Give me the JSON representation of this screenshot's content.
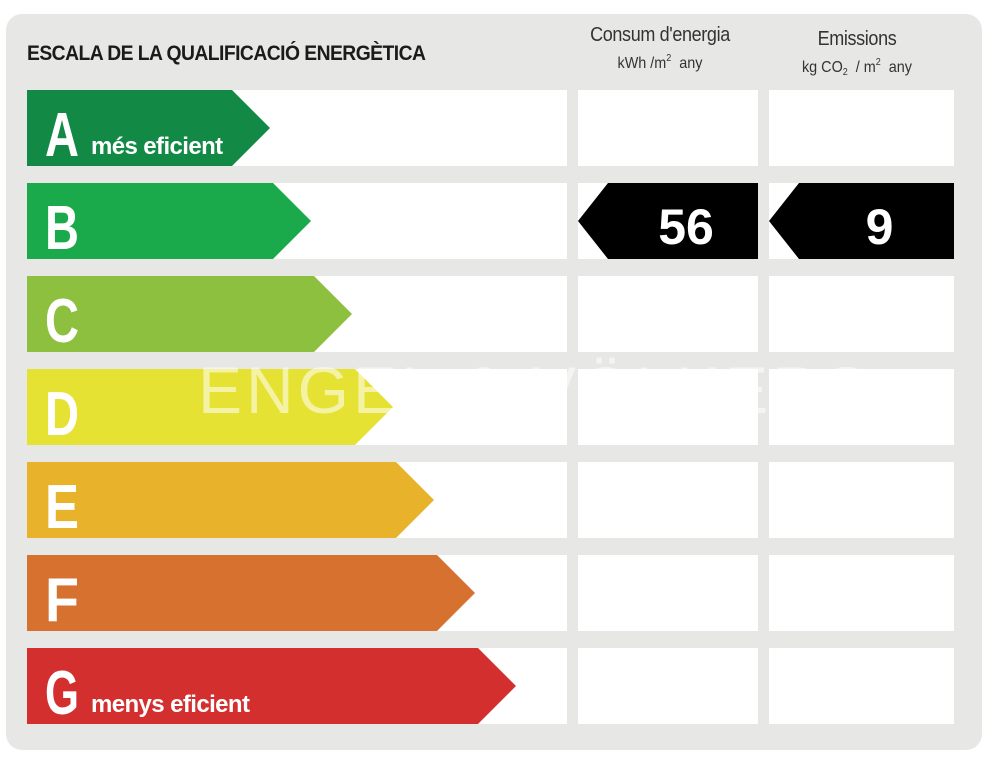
{
  "title": "ESCALA DE LA QUALIFICACIÓ ENERGÈTICA",
  "columns": {
    "consumption": {
      "label": "Consum d'energia",
      "unit_pre": "kWh /m",
      "unit_sup": "2",
      "unit_post": "any"
    },
    "emissions": {
      "label": "Emissions",
      "unit_pre": "kg CO",
      "unit_sub": "2",
      "unit_mid": "/ m",
      "unit_sup": "2",
      "unit_post": "any"
    }
  },
  "classes": [
    {
      "letter": "A",
      "note": "més eficient",
      "color": "#128a45"
    },
    {
      "letter": "B",
      "note": "",
      "color": "#1aaa4b"
    },
    {
      "letter": "C",
      "note": "",
      "color": "#8dc03f"
    },
    {
      "letter": "D",
      "note": "",
      "color": "#e6e233"
    },
    {
      "letter": "E",
      "note": "",
      "color": "#e8b32a"
    },
    {
      "letter": "F",
      "note": "",
      "color": "#d6712f"
    },
    {
      "letter": "G",
      "note": "menys eficient",
      "color": "#d32f2f"
    }
  ],
  "rating": {
    "class": "B",
    "consumption_value": "56",
    "emissions_value": "9",
    "marker_color": "#000000"
  },
  "watermark": "ENGEL & VÖLKERS"
}
